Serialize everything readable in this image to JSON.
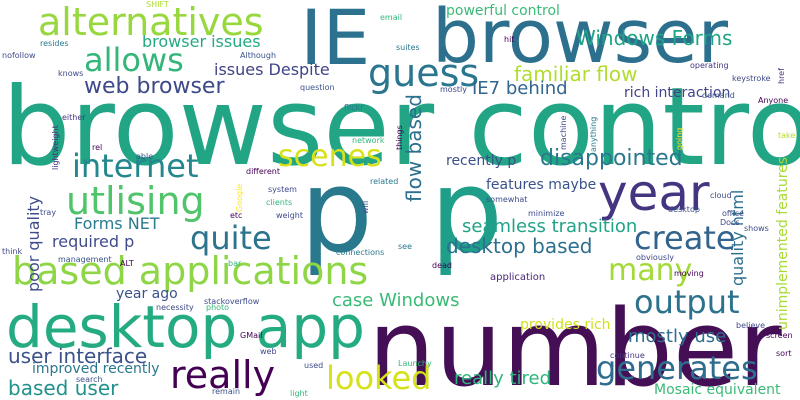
{
  "words": [
    {
      "text": "browser control",
      "color": "#21a585",
      "vertical": false
    },
    {
      "text": "number",
      "color": "#440f54",
      "vertical": false
    },
    {
      "text": "p",
      "color": "#29798e",
      "vertical": false
    },
    {
      "text": "desktop app",
      "color": "#25ab82",
      "vertical": false
    },
    {
      "text": "IE",
      "color": "#2c718e",
      "vertical": false
    },
    {
      "text": "browser",
      "color": "#2d708e",
      "vertical": false
    },
    {
      "text": "p",
      "color": "#1f9e89",
      "vertical": false
    },
    {
      "text": "year",
      "color": "#453581",
      "vertical": false
    },
    {
      "text": "based applications",
      "color": "#8ed645",
      "vertical": false
    },
    {
      "text": "alternatives",
      "color": "#98d83e",
      "vertical": false
    },
    {
      "text": "allows",
      "color": "#33b67a",
      "vertical": false
    },
    {
      "text": "guess",
      "color": "#2a768e",
      "vertical": false
    },
    {
      "text": "internet",
      "color": "#24878e",
      "vertical": false
    },
    {
      "text": "utlising",
      "color": "#50c46a",
      "vertical": false
    },
    {
      "text": "quite",
      "color": "#2c738e",
      "vertical": false
    },
    {
      "text": "web browser",
      "color": "#3e4989",
      "vertical": false
    },
    {
      "text": "scenes",
      "color": "#d7e11a",
      "vertical": false
    },
    {
      "text": "create",
      "color": "#32648e",
      "vertical": false
    },
    {
      "text": "output",
      "color": "#2c728e",
      "vertical": false
    },
    {
      "text": "many",
      "color": "#a2da37",
      "vertical": false
    },
    {
      "text": "really",
      "color": "#440154",
      "vertical": false
    },
    {
      "text": "looked",
      "color": "#d5e21a",
      "vertical": false
    },
    {
      "text": "generates",
      "color": "#2e6d8e",
      "vertical": false
    },
    {
      "text": "disappointed",
      "color": "#2a788e",
      "vertical": false
    },
    {
      "text": "Windows Forms",
      "color": "#20a486",
      "vertical": false
    },
    {
      "text": "browser issues",
      "color": "#24aa83",
      "vertical": false
    },
    {
      "text": "familiar flow",
      "color": "#b0dd2f",
      "vertical": false
    },
    {
      "text": "IE7 behind",
      "color": "#31668e",
      "vertical": false
    },
    {
      "text": "issues Despite",
      "color": "#414487",
      "vertical": false
    },
    {
      "text": "rich interaction",
      "color": "#414487",
      "vertical": false
    },
    {
      "text": "powerful control",
      "color": "#3aba76",
      "vertical": false
    },
    {
      "text": "flow based",
      "color": "#2d708e",
      "vertical": true
    },
    {
      "text": "recently p",
      "color": "#3d4e8a",
      "vertical": false
    },
    {
      "text": "seamless transition",
      "color": "#20a386",
      "vertical": false
    },
    {
      "text": "desktop based",
      "color": "#2d708e",
      "vertical": false
    },
    {
      "text": "quality html",
      "color": "#2d708e",
      "vertical": true
    },
    {
      "text": "unimplemented features",
      "color": "#a8db34",
      "vertical": true
    },
    {
      "text": "features maybe",
      "color": "#3a538b",
      "vertical": false
    },
    {
      "text": "Forms NET",
      "color": "#297b8e",
      "vertical": false
    },
    {
      "text": "required p",
      "color": "#3e4c8a",
      "vertical": false
    },
    {
      "text": "poor quality",
      "color": "#3e4c8a",
      "vertical": true
    },
    {
      "text": "case Windows",
      "color": "#3aba76",
      "vertical": false
    },
    {
      "text": "mostly use",
      "color": "#2e6e8e",
      "vertical": false
    },
    {
      "text": "user interface",
      "color": "#3b528b",
      "vertical": false
    },
    {
      "text": "year ago",
      "color": "#3b528b",
      "vertical": false
    },
    {
      "text": "based user",
      "color": "#21918c",
      "vertical": false
    },
    {
      "text": "improved recently",
      "color": "#2a788e",
      "vertical": false
    },
    {
      "text": "really tired",
      "color": "#2fb47c",
      "vertical": false
    },
    {
      "text": "provides rich",
      "color": "#d0e11c",
      "vertical": false
    },
    {
      "text": "Mosaic equivalent",
      "color": "#3aba76",
      "vertical": false
    },
    {
      "text": "application",
      "color": "#482677",
      "vertical": false
    },
    {
      "text": "SHIFT",
      "color": "#aadc32",
      "vertical": false
    },
    {
      "text": "nofollow",
      "color": "#3e4a89",
      "vertical": false
    },
    {
      "text": "resides",
      "color": "#2a788e",
      "vertical": false
    },
    {
      "text": "Although",
      "color": "#3b528b",
      "vertical": false
    },
    {
      "text": "email",
      "color": "#35b779",
      "vertical": false
    },
    {
      "text": "suites",
      "color": "#2a788e",
      "vertical": false
    },
    {
      "text": "hit",
      "color": "#440154",
      "vertical": false
    },
    {
      "text": "operating",
      "color": "#46337e",
      "vertical": false
    },
    {
      "text": "keystroke",
      "color": "#3e4a89",
      "vertical": false
    },
    {
      "text": "href",
      "color": "#46337e",
      "vertical": true
    },
    {
      "text": "demand",
      "color": "#3b528b",
      "vertical": false
    },
    {
      "text": "Anyone",
      "color": "#440154",
      "vertical": false
    },
    {
      "text": "knows",
      "color": "#3e4a89",
      "vertical": false
    },
    {
      "text": "question",
      "color": "#3b528b",
      "vertical": false
    },
    {
      "text": "flickr",
      "color": "#2a788e",
      "vertical": false
    },
    {
      "text": "mostly",
      "color": "#3e4a89",
      "vertical": false
    },
    {
      "text": "either",
      "color": "#46337e",
      "vertical": false
    },
    {
      "text": "machine",
      "color": "#3e4a89",
      "vertical": true
    },
    {
      "text": "anything",
      "color": "#2a788e",
      "vertical": true
    },
    {
      "text": "going",
      "color": "#fde725",
      "vertical": true
    },
    {
      "text": "take",
      "color": "#b5de2b",
      "vertical": false
    },
    {
      "text": "lightweight",
      "color": "#472d7b",
      "vertical": true
    },
    {
      "text": "rel",
      "color": "#440154",
      "vertical": false
    },
    {
      "text": "able",
      "color": "#3b528b",
      "vertical": false
    },
    {
      "text": "network",
      "color": "#35b779",
      "vertical": false
    },
    {
      "text": "things",
      "color": "#440154",
      "vertical": true
    },
    {
      "text": "different",
      "color": "#440154",
      "vertical": false
    },
    {
      "text": "Google",
      "color": "#fde725",
      "vertical": true
    },
    {
      "text": "related",
      "color": "#2a788e",
      "vertical": false
    },
    {
      "text": "somewhat",
      "color": "#3e4a89",
      "vertical": false
    },
    {
      "text": "cloud",
      "color": "#3e4a89",
      "vertical": false
    },
    {
      "text": "system",
      "color": "#3e4a89",
      "vertical": false
    },
    {
      "text": "clients",
      "color": "#35b779",
      "vertical": false
    },
    {
      "text": "tray",
      "color": "#3e4a89",
      "vertical": false
    },
    {
      "text": "etc",
      "color": "#440154",
      "vertical": false
    },
    {
      "text": "weight",
      "color": "#3e4a89",
      "vertical": false
    },
    {
      "text": "will",
      "color": "#3b528b",
      "vertical": true
    },
    {
      "text": "minimize",
      "color": "#3e4a89",
      "vertical": false
    },
    {
      "text": "desktop",
      "color": "#3b528b",
      "vertical": false
    },
    {
      "text": "office",
      "color": "#3e4a89",
      "vertical": false
    },
    {
      "text": "Docs",
      "color": "#3e4a89",
      "vertical": false
    },
    {
      "text": "shows",
      "color": "#3e4a89",
      "vertical": false
    },
    {
      "text": "think",
      "color": "#3e4a89",
      "vertical": false
    },
    {
      "text": "management",
      "color": "#3b528b",
      "vertical": false
    },
    {
      "text": "connections",
      "color": "#2a788e",
      "vertical": false
    },
    {
      "text": "see",
      "color": "#2a788e",
      "vertical": false
    },
    {
      "text": "dead",
      "color": "#440154",
      "vertical": false
    },
    {
      "text": "obviously",
      "color": "#3e4a89",
      "vertical": false
    },
    {
      "text": "ALT",
      "color": "#440154",
      "vertical": false
    },
    {
      "text": "bar",
      "color": "#35b779",
      "vertical": false
    },
    {
      "text": "moving",
      "color": "#440154",
      "vertical": false
    },
    {
      "text": "stackoverflow",
      "color": "#3e4a89",
      "vertical": false
    },
    {
      "text": "necessity",
      "color": "#3e4a89",
      "vertical": false
    },
    {
      "text": "photo",
      "color": "#35b779",
      "vertical": false
    },
    {
      "text": "GMail",
      "color": "#440154",
      "vertical": false
    },
    {
      "text": "believe",
      "color": "#3e4a89",
      "vertical": false
    },
    {
      "text": "screen",
      "color": "#440154",
      "vertical": false
    },
    {
      "text": "continue",
      "color": "#46337e",
      "vertical": false
    },
    {
      "text": "web",
      "color": "#3e4a89",
      "vertical": false
    },
    {
      "text": "sort",
      "color": "#440154",
      "vertical": false
    },
    {
      "text": "used",
      "color": "#3e4a89",
      "vertical": false
    },
    {
      "text": "Launchy",
      "color": "#35b779",
      "vertical": false
    },
    {
      "text": "search",
      "color": "#3b528b",
      "vertical": false
    },
    {
      "text": "remain",
      "color": "#3b528b",
      "vertical": false
    },
    {
      "text": "light",
      "color": "#35b779",
      "vertical": false
    }
  ]
}
